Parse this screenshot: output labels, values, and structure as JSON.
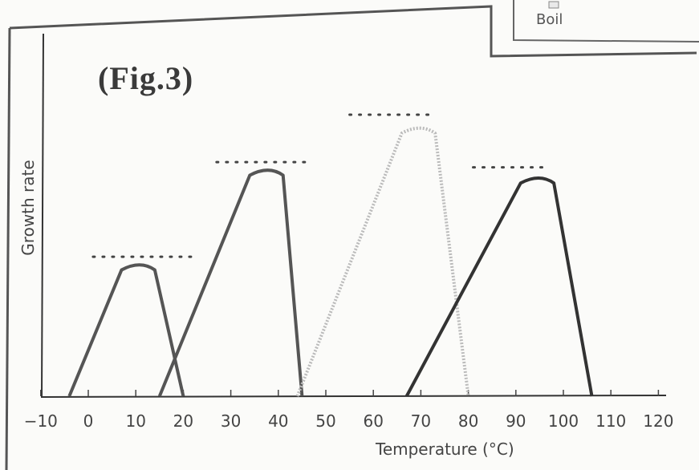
{
  "figure_label": "(Fig.3)",
  "legend": {
    "label": "Boil"
  },
  "chart_data": {
    "type": "line",
    "title": "",
    "xlabel": "Temperature (°C)",
    "ylabel": "Growth rate",
    "xlim": [
      -10,
      120
    ],
    "x_ticks": [
      -10,
      0,
      10,
      20,
      30,
      40,
      50,
      60,
      70,
      80,
      90,
      100,
      110,
      120
    ],
    "y_ticks": [],
    "grid": false,
    "series": [
      {
        "x": [
          -4,
          7,
          11,
          14,
          20
        ],
        "y": [
          0,
          0.48,
          0.5,
          0.48,
          0
        ],
        "color": "#555555",
        "style": "solid"
      },
      {
        "x": [
          15,
          34,
          38,
          41,
          45
        ],
        "y": [
          0,
          0.84,
          0.86,
          0.84,
          0
        ],
        "color": "#555555",
        "style": "solid"
      },
      {
        "x": [
          44,
          66,
          70,
          73,
          80
        ],
        "y": [
          0,
          1.0,
          1.02,
          1.0,
          0
        ],
        "color": "#bbbbbb",
        "style": "dotted"
      },
      {
        "x": [
          67,
          91,
          95,
          98,
          106
        ],
        "y": [
          0,
          0.81,
          0.83,
          0.81,
          0
        ],
        "color": "#333333",
        "style": "solid"
      }
    ],
    "dotted_markers": [
      {
        "x_start": 1,
        "x_end": 23,
        "y": 0.53
      },
      {
        "x_start": 27,
        "x_end": 46,
        "y": 0.89
      },
      {
        "x_start": 55,
        "x_end": 72,
        "y": 1.07
      },
      {
        "x_start": 81,
        "x_end": 96,
        "y": 0.87
      }
    ]
  }
}
